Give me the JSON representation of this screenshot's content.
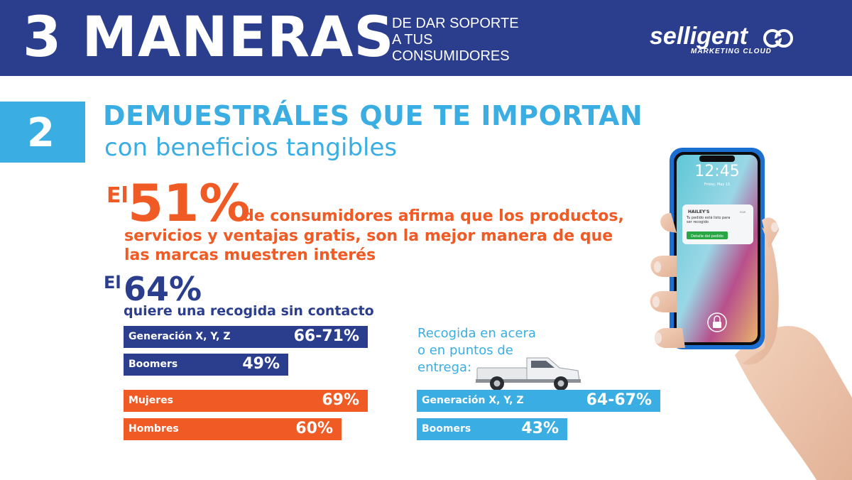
{
  "header": {
    "title": "3 MANERAS",
    "subtitle_lines": [
      "DE DAR SOPORTE",
      "A TUS",
      "CONSUMIDORES"
    ],
    "logo_text": "selligent",
    "logo_tagline": "MARKETING CLOUD"
  },
  "section": {
    "number": "2",
    "title": "DEMUESTRÁLES QUE TE IMPORTAN",
    "subtitle": "con beneficios tangibles"
  },
  "stat1": {
    "prefix": "El",
    "value": "51%",
    "lines": [
      "de consumidores afirma que los productos,",
      "servicios y ventajas gratis, son la mejor manera de que",
      "las marcas muestren interés"
    ]
  },
  "stat2": {
    "prefix": "El",
    "value": "64%",
    "description": "quiere una recogida sin contacto"
  },
  "contactless_bars": [
    {
      "label": "Generación X, Y, Z",
      "value": "66-71%",
      "color": "#2b3e8e"
    },
    {
      "label": "Boomers",
      "value": "49%",
      "color": "#2b3e8e"
    },
    {
      "label": "Mujeres",
      "value": "69%",
      "color": "#f05a24"
    },
    {
      "label": "Hombres",
      "value": "60%",
      "color": "#f05a24"
    }
  ],
  "curbside": {
    "title_lines": [
      "Recogida en acera",
      "o en puntos de",
      "entrega:"
    ],
    "bars": [
      {
        "label": "Generación X, Y, Z",
        "value": "64-67%",
        "color": "#3aaee2"
      },
      {
        "label": "Boomers",
        "value": "43%",
        "color": "#3aaee2"
      }
    ]
  },
  "phone": {
    "time": "12:45",
    "date": "Friday, May 15",
    "notification_brand": "HAILEY'S",
    "notification_time": "now",
    "notification_text": "Tu pedido está listo para ser recogido",
    "notification_button": "Detalle del pedido"
  },
  "colors": {
    "navy": "#2b3e8e",
    "sky": "#3aaee2",
    "orange": "#f05a24"
  },
  "icons": [
    "truck-icon",
    "lock-icon",
    "hand-holding-phone",
    "selligent-logo-mark"
  ]
}
